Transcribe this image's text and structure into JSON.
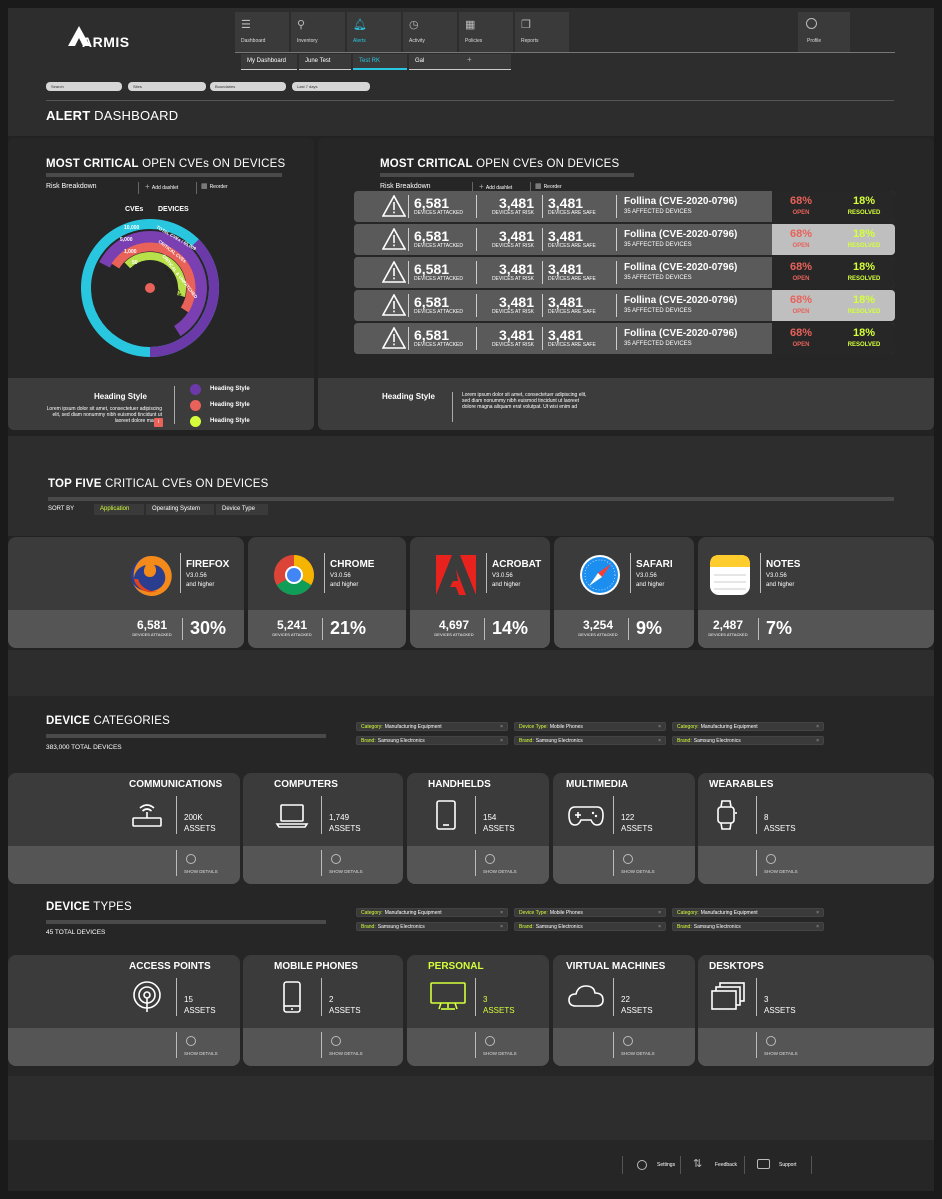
{
  "brand": {
    "logo_text": "ARMIS"
  },
  "nav": {
    "tabs": [
      {
        "label": "Dashboard",
        "icon": "menu-icon"
      },
      {
        "label": "Inventory",
        "icon": "network-icon"
      },
      {
        "label": "Alerts",
        "icon": "bell-icon"
      },
      {
        "label": "Activity",
        "icon": "clock-icon"
      },
      {
        "label": "Policies",
        "icon": "grid-icon"
      },
      {
        "label": "Reports",
        "icon": "copy-icon"
      }
    ],
    "profile": "Profile",
    "subtabs": [
      "My Dashboard",
      "June Test",
      "Test RK",
      "Gal"
    ],
    "add_tab": "+"
  },
  "filters": [
    "Search",
    "Sites",
    "Boundaries",
    "Last 7 days"
  ],
  "page_title": {
    "bold": "ALERT",
    "rest": "DASHBOARD"
  },
  "panel_left": {
    "title_bold": "MOST CRITICAL",
    "title_rest": "OPEN CVEs ON DEVICES",
    "risk": "Risk Breakdown",
    "add": "Add dashlet",
    "reorder": "Reorder",
    "donut_labels": {
      "cves": "CVEs",
      "devices": "DEVICES"
    },
    "rings": [
      {
        "label": "10,000",
        "text": "TOTAL CVEs / 65,009",
        "color": "#29c6e0"
      },
      {
        "label": "5,000",
        "text": "CRITICAL CVEs",
        "color": "#7a3fb0"
      },
      {
        "label": "1,000",
        "text": "CRITICAL & UNPATCHED",
        "color": "#e8625a"
      },
      {
        "label": "50",
        "text": "MOST CRITICAL",
        "color": "#b8e04a"
      }
    ],
    "foot_heading": "Heading Style",
    "foot_text": "Lorem ipsum dolor sit amet, consectetuer adipiscing elit, sed diam nonummy nibh euismod tincidunt ut laoreet dolore magna",
    "legend": [
      {
        "label": "Heading Style",
        "color": "#6b3aa8"
      },
      {
        "label": "Heading Style",
        "color": "#e8625a"
      },
      {
        "label": "Heading Style",
        "color": "#d4ff3a"
      }
    ]
  },
  "panel_right": {
    "title_bold": "MOST CRITICAL",
    "title_rest": "OPEN CVEs ON DEVICES",
    "risk": "Risk Breakdown",
    "add": "Add dashlet",
    "reorder": "Reorder",
    "rows": [
      {
        "attacked": "6,581",
        "attacked_lbl": "DEVICES ATTACKED",
        "risk": "3,481",
        "risk_lbl": "DEVICES AT RISK",
        "safe": "3,481",
        "safe_lbl": "DEVICES ARE SAFE",
        "cve": "Follina (CVE-2020-0796)",
        "affected": "35 AFFECTED DEVICES",
        "open": "68%",
        "open_lbl": "OPEN",
        "resolved": "18%",
        "resolved_lbl": "RESOLVED",
        "light": false
      },
      {
        "attacked": "6,581",
        "attacked_lbl": "DEVICES ATTACKED",
        "risk": "3,481",
        "risk_lbl": "DEVICES AT RISK",
        "safe": "3,481",
        "safe_lbl": "DEVICES ARE SAFE",
        "cve": "Follina (CVE-2020-0796)",
        "affected": "35 AFFECTED DEVICES",
        "open": "68%",
        "open_lbl": "OPEN",
        "resolved": "18%",
        "resolved_lbl": "RESOLVED",
        "light": true
      },
      {
        "attacked": "6,581",
        "attacked_lbl": "DEVICES ATTACKED",
        "risk": "3,481",
        "risk_lbl": "DEVICES AT RISK",
        "safe": "3,481",
        "safe_lbl": "DEVICES ARE SAFE",
        "cve": "Follina (CVE-2020-0796)",
        "affected": "35 AFFECTED DEVICES",
        "open": "68%",
        "open_lbl": "OPEN",
        "resolved": "18%",
        "resolved_lbl": "RESOLVED",
        "light": false
      },
      {
        "attacked": "6,581",
        "attacked_lbl": "DEVICES ATTACKED",
        "risk": "3,481",
        "risk_lbl": "DEVICES AT RISK",
        "safe": "3,481",
        "safe_lbl": "DEVICES ARE SAFE",
        "cve": "Follina (CVE-2020-0796)",
        "affected": "35 AFFECTED DEVICES",
        "open": "68%",
        "open_lbl": "OPEN",
        "resolved": "18%",
        "resolved_lbl": "RESOLVED",
        "light": true
      },
      {
        "attacked": "6,581",
        "attacked_lbl": "DEVICES ATTACKED",
        "risk": "3,481",
        "risk_lbl": "DEVICES AT RISK",
        "safe": "3,481",
        "safe_lbl": "DEVICES ARE SAFE",
        "cve": "Follina (CVE-2020-0796)",
        "affected": "35 AFFECTED DEVICES",
        "open": "68%",
        "open_lbl": "OPEN",
        "resolved": "18%",
        "resolved_lbl": "RESOLVED",
        "light": false
      }
    ],
    "foot_heading": "Heading Style",
    "foot_text": "Lorem ipsum dolor sit amet, consectetuer adipiscing elit, sed diam nonummy nibh euismod tincidunt ut laoreet dolore magna aliquam erat volutpat. Ut wisi enim ad"
  },
  "top_five": {
    "title_bold": "TOP FIVE",
    "title_rest": "CRITICAL CVEs ON DEVICES",
    "sort_by": "SORT BY",
    "sort_options": [
      "Application",
      "Operating System",
      "Device Type"
    ],
    "apps": [
      {
        "name": "FIREFOX",
        "version": "V3.0.56",
        "sub": "and higher",
        "count": "6,581",
        "count_lbl": "DEVICES ATTACKED",
        "pct": "30%",
        "icon": "firefox-icon"
      },
      {
        "name": "CHROME",
        "version": "V3.0.56",
        "sub": "and higher",
        "count": "5,241",
        "count_lbl": "DEVICES ATTACKED",
        "pct": "21%",
        "icon": "chrome-icon"
      },
      {
        "name": "ACROBAT",
        "version": "V3.0.56",
        "sub": "and higher",
        "count": "4,697",
        "count_lbl": "DEVICES ATTACKED",
        "pct": "14%",
        "icon": "acrobat-icon"
      },
      {
        "name": "SAFARI",
        "version": "V3.0.56",
        "sub": "and higher",
        "count": "3,254",
        "count_lbl": "DEVICES ATTACKED",
        "pct": "9%",
        "icon": "safari-icon"
      },
      {
        "name": "NOTES",
        "version": "V3.0.56",
        "sub": "and higher",
        "count": "2,487",
        "count_lbl": "DEVICES ATTACKED",
        "pct": "7%",
        "icon": "notes-icon"
      }
    ]
  },
  "categories": {
    "title_bold": "DEVICE",
    "title_rest": "CATEGORIES",
    "total": "383,000 TOTAL DEVICES",
    "chips": [
      {
        "k": "Category:",
        "v": "Manufacturing Equipment"
      },
      {
        "k": "Device Type:",
        "v": "Mobile Phones"
      },
      {
        "k": "Category:",
        "v": "Manufacturing Equipment"
      },
      {
        "k": "Brand:",
        "v": "Samsung Electronics"
      },
      {
        "k": "Brand:",
        "v": "Samsung Electronics"
      },
      {
        "k": "Brand:",
        "v": "Samsung Electronics"
      }
    ],
    "cards": [
      {
        "name": "COMMUNICATIONS",
        "value": "200K",
        "unit": "ASSETS",
        "icon": "router-icon",
        "highlight": false
      },
      {
        "name": "COMPUTERS",
        "value": "1,749",
        "unit": "ASSETS",
        "icon": "laptop-icon",
        "highlight": false
      },
      {
        "name": "HANDHELDS",
        "value": "154",
        "unit": "ASSETS",
        "icon": "tablet-icon",
        "highlight": false
      },
      {
        "name": "MULTIMEDIA",
        "value": "122",
        "unit": "ASSETS",
        "icon": "gamepad-icon",
        "highlight": false
      },
      {
        "name": "WEARABLES",
        "value": "8",
        "unit": "ASSETS",
        "icon": "watch-icon",
        "highlight": false
      }
    ],
    "show_details": "SHOW DETAILS"
  },
  "types": {
    "title_bold": "DEVICE",
    "title_rest": "TYPES",
    "total": "45 TOTAL DEVICES",
    "chips": [
      {
        "k": "Category:",
        "v": "Manufacturing Equipment"
      },
      {
        "k": "Device Type:",
        "v": "Mobile Phones"
      },
      {
        "k": "Category:",
        "v": "Manufacturing Equipment"
      },
      {
        "k": "Brand:",
        "v": "Samsung Electronics"
      },
      {
        "k": "Brand:",
        "v": "Samsung Electronics"
      },
      {
        "k": "Brand:",
        "v": "Samsung Electronics"
      }
    ],
    "cards": [
      {
        "name": "ACCESS POINTS",
        "value": "15",
        "unit": "ASSETS",
        "icon": "access-point-icon",
        "highlight": false
      },
      {
        "name": "MOBILE PHONES",
        "value": "2",
        "unit": "ASSETS",
        "icon": "phone-icon",
        "highlight": false
      },
      {
        "name": "PERSONAL",
        "value": "3",
        "unit": "ASSETS",
        "icon": "monitor-icon",
        "highlight": true
      },
      {
        "name": "VIRTUAL MACHINES",
        "value": "22",
        "unit": "ASSETS",
        "icon": "cloud-icon",
        "highlight": false
      },
      {
        "name": "DESKTOPS",
        "value": "3",
        "unit": "ASSETS",
        "icon": "stack-icon",
        "highlight": false
      }
    ],
    "show_details": "SHOW DETAILS"
  },
  "footer": {
    "settings": "Settings",
    "feedback": "Feedback",
    "support": "Support"
  },
  "colors": {
    "accent": "#29c6e0",
    "lime": "#d4ff3a",
    "red": "#e8625a",
    "purple": "#6b3aa8"
  }
}
